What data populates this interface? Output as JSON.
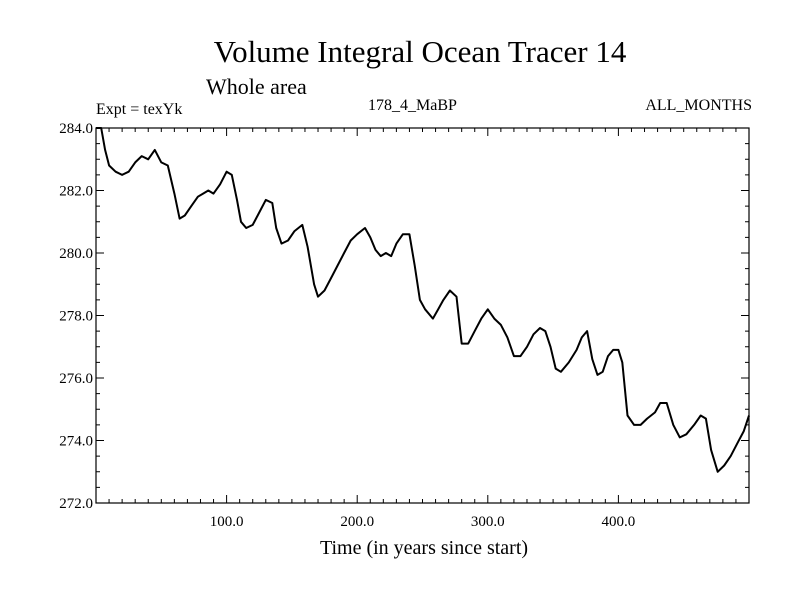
{
  "chart_data": {
    "type": "line",
    "title": "Volume Integral Ocean Tracer 14",
    "subtitle": "Whole area",
    "expt_label": "Expt = texYk",
    "period_label": "178_4_MaBP",
    "months_label": "ALL_MONTHS",
    "xlabel": "Time (in years since start)",
    "ylabel": "",
    "xlim": [
      0,
      500
    ],
    "ylim": [
      272.0,
      284.0
    ],
    "xticks": [
      100,
      200,
      300,
      400
    ],
    "xtick_labels": [
      "100.0",
      "200.0",
      "300.0",
      "400.0"
    ],
    "yticks": [
      272,
      274,
      276,
      278,
      280,
      282,
      284
    ],
    "ytick_labels": [
      "272.0",
      "274.0",
      "276.0",
      "278.0",
      "280.0",
      "282.0",
      "284.0"
    ],
    "grid": false,
    "series": [
      {
        "x": [
          0,
          4,
          7,
          10,
          15,
          20,
          25,
          30,
          35,
          40,
          45,
          50,
          55,
          60,
          64,
          68,
          73,
          78,
          82,
          86,
          90,
          95,
          100,
          104,
          108,
          111,
          115,
          120,
          125,
          130,
          135,
          138,
          142,
          147,
          152,
          158,
          162,
          167,
          170,
          175,
          180,
          185,
          190,
          195,
          200,
          206,
          210,
          214,
          218,
          222,
          226,
          230,
          235,
          240,
          244,
          248,
          252,
          258,
          262,
          266,
          271,
          276,
          280,
          285,
          290,
          295,
          300,
          305,
          310,
          315,
          320,
          325,
          330,
          335,
          340,
          344,
          348,
          352,
          356,
          362,
          368,
          372,
          376,
          380,
          384,
          388,
          392,
          396,
          400,
          403,
          407,
          412,
          417,
          422,
          428,
          432,
          437,
          442,
          447,
          452,
          458,
          463,
          467,
          471,
          476,
          481,
          486,
          491,
          496,
          500
        ],
        "y": [
          284.0,
          284.0,
          283.3,
          282.8,
          282.6,
          282.5,
          282.6,
          282.9,
          283.1,
          283.0,
          283.3,
          282.9,
          282.8,
          281.9,
          281.1,
          281.2,
          281.5,
          281.8,
          281.9,
          282.0,
          281.9,
          282.2,
          282.6,
          282.5,
          281.7,
          281.0,
          280.8,
          280.9,
          281.3,
          281.7,
          281.6,
          280.8,
          280.3,
          280.4,
          280.7,
          280.9,
          280.2,
          279.0,
          278.6,
          278.8,
          279.2,
          279.6,
          280.0,
          280.4,
          280.6,
          280.8,
          280.5,
          280.1,
          279.9,
          280.0,
          279.9,
          280.3,
          280.6,
          280.6,
          279.6,
          278.5,
          278.2,
          277.9,
          278.2,
          278.5,
          278.8,
          278.6,
          277.1,
          277.1,
          277.5,
          277.9,
          278.2,
          277.9,
          277.7,
          277.3,
          276.7,
          276.7,
          277.0,
          277.4,
          277.6,
          277.5,
          277.0,
          276.3,
          276.2,
          276.5,
          276.9,
          277.3,
          277.5,
          276.6,
          276.1,
          276.2,
          276.7,
          276.9,
          276.9,
          276.5,
          274.8,
          274.5,
          274.5,
          274.7,
          274.9,
          275.2,
          275.2,
          274.5,
          274.1,
          274.2,
          274.5,
          274.8,
          274.7,
          273.7,
          273.0,
          273.2,
          273.5,
          273.9,
          274.3,
          274.8
        ]
      }
    ]
  }
}
